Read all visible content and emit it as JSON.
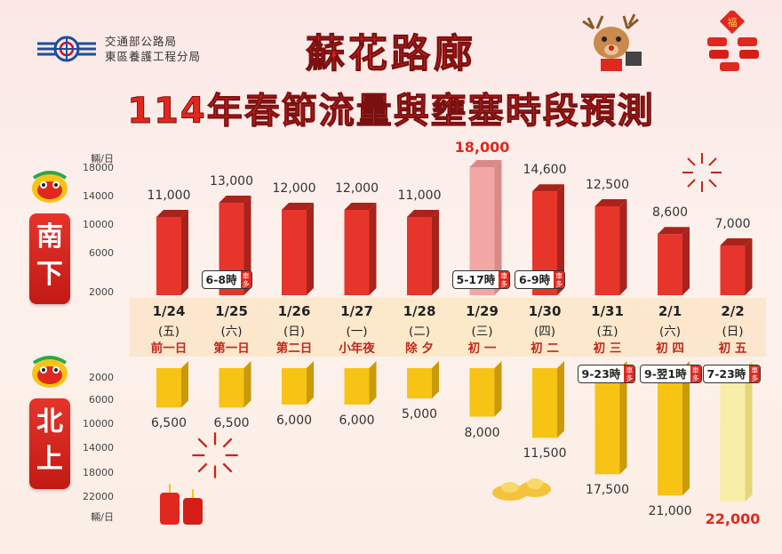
{
  "header": {
    "org_line1": "交通部公路局",
    "org_line2": "東區養護工程分局",
    "title": "蘇花路廊",
    "subtitle": "114年春節流量與壅塞時段預測"
  },
  "decor": {
    "fu_label": "福"
  },
  "directions": {
    "south": "南下",
    "north": "北上",
    "south_chars": [
      "南",
      "下"
    ],
    "north_chars": [
      "北",
      "上"
    ]
  },
  "axis": {
    "unit": "輛/日",
    "south_ticks": [
      "18000",
      "14000",
      "10000",
      "6000",
      "2000"
    ],
    "north_ticks": [
      "2000",
      "6000",
      "10000",
      "14000",
      "18000",
      "22000"
    ]
  },
  "congestion_tag": "車多",
  "chart_data": {
    "type": "bar",
    "categories": [
      "1/24",
      "1/25",
      "1/26",
      "1/27",
      "1/28",
      "1/29",
      "1/30",
      "1/31",
      "2/1",
      "2/2"
    ],
    "weekdays": [
      "(五)",
      "(六)",
      "(日)",
      "(一)",
      "(二)",
      "(三)",
      "(四)",
      "(五)",
      "(六)",
      "(日)"
    ],
    "events": [
      "前一日",
      "第一日",
      "第二日",
      "小年夜",
      "除 夕",
      "初 一",
      "初 二",
      "初 三",
      "初 四",
      "初 五"
    ],
    "ylabel": "輛/日",
    "ylim": [
      0,
      22000
    ],
    "series": [
      {
        "name": "南下",
        "color": "#e8352b",
        "values": [
          11000,
          13000,
          12000,
          12000,
          11000,
          18000,
          14600,
          12500,
          8600,
          7000
        ],
        "labels": [
          "11,000",
          "13,000",
          "12,000",
          "12,000",
          "11,000",
          "18,000",
          "14,600",
          "12,500",
          "8,600",
          "7,000"
        ],
        "congestion": [
          "",
          "6-8時",
          "",
          "",
          "",
          "5-17時",
          "6-9時",
          "",
          "",
          ""
        ]
      },
      {
        "name": "北上",
        "color": "#f7c315",
        "values": [
          6500,
          6500,
          6000,
          6000,
          5000,
          8000,
          11500,
          17500,
          21000,
          22000
        ],
        "labels": [
          "6,500",
          "6,500",
          "6,000",
          "6,000",
          "5,000",
          "8,000",
          "11,500",
          "17,500",
          "21,000",
          "22,000"
        ],
        "congestion": [
          "",
          "",
          "",
          "",
          "",
          "",
          "",
          "9-23時",
          "9-翌1時",
          "7-23時"
        ]
      }
    ]
  }
}
